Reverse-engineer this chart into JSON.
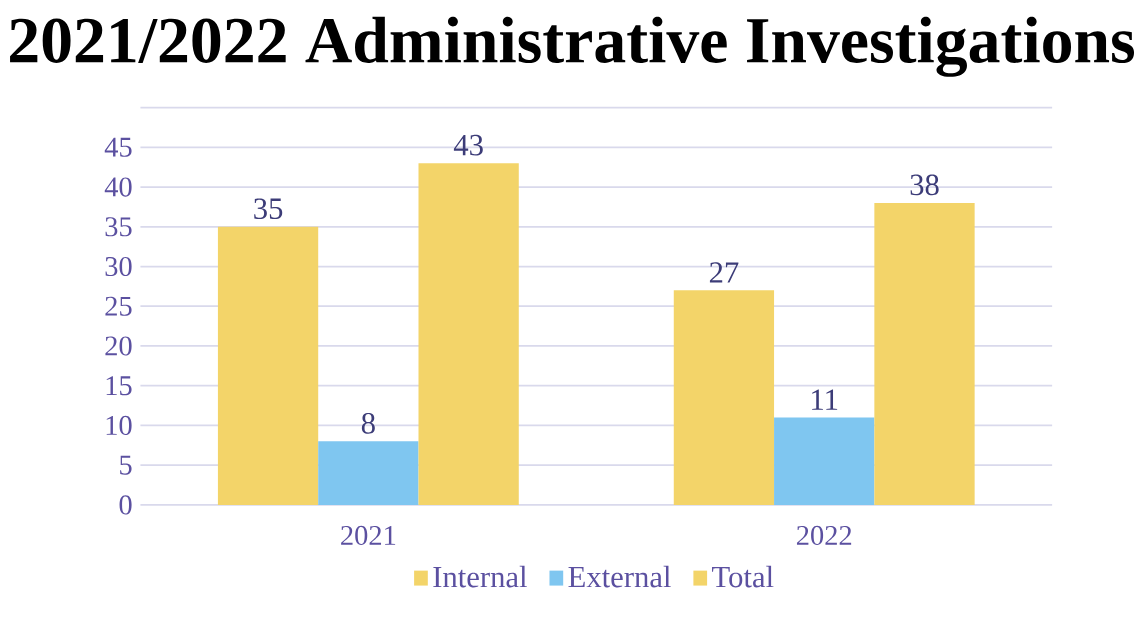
{
  "chart_data": {
    "type": "bar",
    "title": "2021/2022 Administrative Investigations",
    "categories": [
      "2021",
      "2022"
    ],
    "series": [
      {
        "name": "Internal",
        "color": "#f3d469",
        "values": [
          35,
          27
        ]
      },
      {
        "name": "External",
        "color": "#7fc6f0",
        "values": [
          8,
          11
        ]
      },
      {
        "name": "Total",
        "color": "#f3d469",
        "values": [
          43,
          38
        ]
      }
    ],
    "ylim": [
      0,
      50
    ],
    "yticks": [
      0,
      5,
      10,
      15,
      20,
      25,
      30,
      35,
      40,
      45,
      {
        "value": 50,
        "label": null
      }
    ],
    "grid": "y",
    "legend": "bottom",
    "data_labels": true
  }
}
